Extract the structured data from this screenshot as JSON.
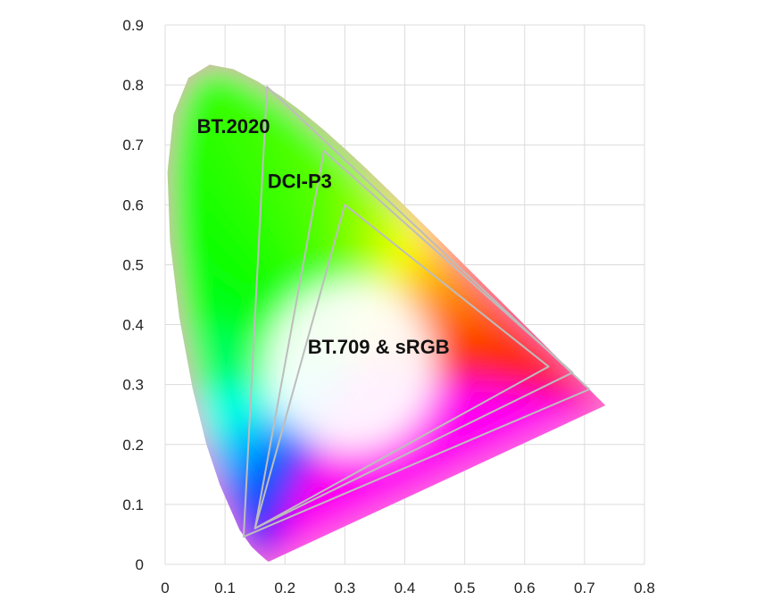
{
  "chart_data": {
    "type": "chromaticity-diagram",
    "title": "",
    "xlabel": "",
    "ylabel": "",
    "xlim": [
      0,
      0.8
    ],
    "ylim": [
      0,
      0.9
    ],
    "grid": true,
    "x_ticks": [
      {
        "value": 0,
        "label": "0"
      },
      {
        "value": 0.1,
        "label": "0.1"
      },
      {
        "value": 0.2,
        "label": "0.2"
      },
      {
        "value": 0.3,
        "label": "0.3"
      },
      {
        "value": 0.4,
        "label": "0.4"
      },
      {
        "value": 0.5,
        "label": "0.5"
      },
      {
        "value": 0.6,
        "label": "0.6"
      },
      {
        "value": 0.7,
        "label": "0.7"
      },
      {
        "value": 0.8,
        "label": "0.8"
      }
    ],
    "y_ticks": [
      {
        "value": 0,
        "label": "0"
      },
      {
        "value": 0.1,
        "label": "0.1"
      },
      {
        "value": 0.2,
        "label": "0.2"
      },
      {
        "value": 0.3,
        "label": "0.3"
      },
      {
        "value": 0.4,
        "label": "0.4"
      },
      {
        "value": 0.5,
        "label": "0.5"
      },
      {
        "value": 0.6,
        "label": "0.6"
      },
      {
        "value": 0.7,
        "label": "0.7"
      },
      {
        "value": 0.8,
        "label": "0.8"
      },
      {
        "value": 0.9,
        "label": "0.9"
      }
    ],
    "spectral_locus": [
      [
        0.1741,
        0.005
      ],
      [
        0.1738,
        0.0049
      ],
      [
        0.1733,
        0.0048
      ],
      [
        0.1726,
        0.0048
      ],
      [
        0.1714,
        0.0051
      ],
      [
        0.1689,
        0.0069
      ],
      [
        0.1644,
        0.0109
      ],
      [
        0.1566,
        0.0177
      ],
      [
        0.144,
        0.0297
      ],
      [
        0.1241,
        0.0578
      ],
      [
        0.0913,
        0.1327
      ],
      [
        0.0687,
        0.2007
      ],
      [
        0.0454,
        0.295
      ],
      [
        0.0235,
        0.4127
      ],
      [
        0.0082,
        0.5384
      ],
      [
        0.0039,
        0.6548
      ],
      [
        0.0139,
        0.7502
      ],
      [
        0.0389,
        0.812
      ],
      [
        0.0743,
        0.8338
      ],
      [
        0.1142,
        0.8262
      ],
      [
        0.1547,
        0.8059
      ],
      [
        0.1929,
        0.7816
      ],
      [
        0.2296,
        0.7543
      ],
      [
        0.2658,
        0.7243
      ],
      [
        0.3016,
        0.6923
      ],
      [
        0.3373,
        0.6589
      ],
      [
        0.3731,
        0.6245
      ],
      [
        0.4087,
        0.5896
      ],
      [
        0.4441,
        0.5547
      ],
      [
        0.4788,
        0.5202
      ],
      [
        0.5125,
        0.4866
      ],
      [
        0.5448,
        0.4544
      ],
      [
        0.5752,
        0.4242
      ],
      [
        0.6029,
        0.3965
      ],
      [
        0.627,
        0.3725
      ],
      [
        0.6482,
        0.3514
      ],
      [
        0.6658,
        0.334
      ],
      [
        0.6801,
        0.3197
      ],
      [
        0.6915,
        0.3083
      ],
      [
        0.7006,
        0.2993
      ],
      [
        0.7079,
        0.292
      ],
      [
        0.714,
        0.2859
      ],
      [
        0.719,
        0.2809
      ],
      [
        0.723,
        0.277
      ],
      [
        0.726,
        0.274
      ],
      [
        0.7347,
        0.2653
      ]
    ],
    "gamuts": [
      {
        "name": "BT.2020",
        "label": "BT.2020",
        "points": [
          [
            0.708,
            0.292
          ],
          [
            0.17,
            0.797
          ],
          [
            0.131,
            0.046
          ]
        ],
        "label_at": [
          0.053,
          0.72
        ]
      },
      {
        "name": "DCI-P3",
        "label": "DCI-P3",
        "points": [
          [
            0.68,
            0.32
          ],
          [
            0.265,
            0.69
          ],
          [
            0.15,
            0.06
          ]
        ],
        "label_at": [
          0.171,
          0.628
        ]
      },
      {
        "name": "BT.709 & sRGB",
        "label": "BT.709 & sRGB",
        "points": [
          [
            0.64,
            0.33
          ],
          [
            0.3,
            0.6
          ],
          [
            0.15,
            0.06
          ]
        ],
        "label_at": [
          0.238,
          0.352
        ]
      }
    ],
    "colors": {
      "gamut_outline": "#bdbdbd",
      "grid": "#dcdcdc",
      "label": "#111111"
    }
  }
}
